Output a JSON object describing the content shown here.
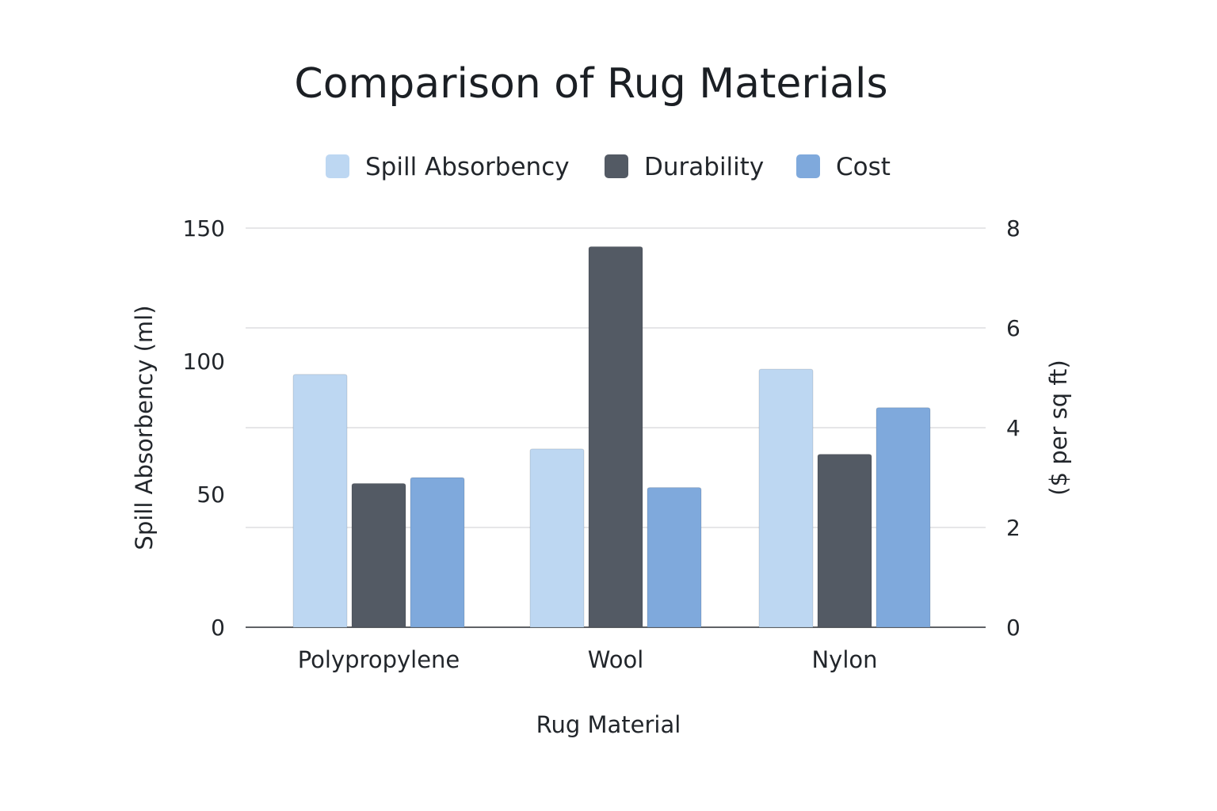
{
  "chart_data": {
    "type": "bar",
    "title": "Comparison of Rug Materials",
    "xlabel": "Rug Material",
    "ylabel": "Spill Absorbency (ml)",
    "y2label": "($ per sq ft)",
    "categories": [
      "Polypropylene",
      "Wool",
      "Nylon"
    ],
    "ylim": [
      0,
      150
    ],
    "y2lim": [
      0,
      8
    ],
    "yticks": [
      0,
      50,
      100,
      150
    ],
    "y2ticks": [
      0,
      2,
      4,
      6,
      8
    ],
    "grid": true,
    "legend_position": "top",
    "series": [
      {
        "name": "Spill Absorbency",
        "axis": "left",
        "color": "#bdd7f2",
        "values": [
          95,
          67,
          97
        ]
      },
      {
        "name": "Durability",
        "axis": "left",
        "color": "#535a64",
        "values": [
          54,
          143,
          65
        ]
      },
      {
        "name": "Cost",
        "axis": "right",
        "color": "#7fa9dc",
        "values": [
          3.0,
          2.8,
          4.4
        ]
      }
    ]
  }
}
